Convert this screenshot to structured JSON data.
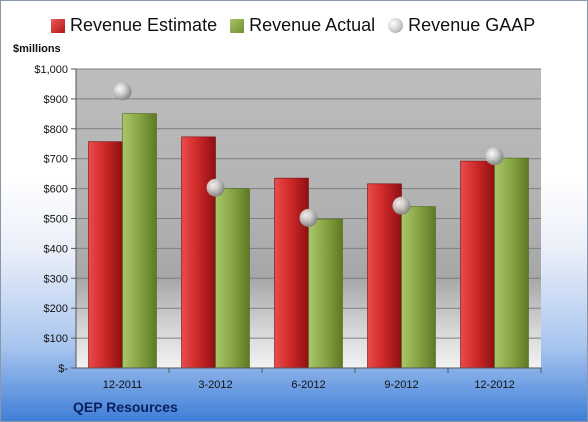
{
  "legend": {
    "estimate": "Revenue Estimate",
    "actual": "Revenue Actual",
    "gaap": "Revenue GAAP"
  },
  "units_label": "$millions",
  "company": "QEP Resources",
  "colors": {
    "estimate": "#c8272b",
    "actual": "#86a542",
    "gaap": "#b8b8b8"
  },
  "chart_data": {
    "type": "bar",
    "categories": [
      "12-2011",
      "3-2012",
      "6-2012",
      "9-2012",
      "12-2012"
    ],
    "series": [
      {
        "name": "Revenue Estimate",
        "values": [
          757,
          773,
          635,
          616,
          692
        ]
      },
      {
        "name": "Revenue Actual",
        "values": [
          851,
          600,
          498,
          540,
          702
        ]
      },
      {
        "name": "Revenue GAAP",
        "values": [
          925,
          603,
          502,
          543,
          708
        ]
      }
    ],
    "ylabel": "$millions",
    "ylim": [
      0,
      1000
    ],
    "yticks": [
      0,
      100,
      200,
      300,
      400,
      500,
      600,
      700,
      800,
      900,
      1000
    ],
    "ytick_labels": [
      "$-",
      "$100",
      "$200",
      "$300",
      "$400",
      "$500",
      "$600",
      "$700",
      "$800",
      "$900",
      "$1,000"
    ],
    "grid": true,
    "legend_position": "top"
  }
}
